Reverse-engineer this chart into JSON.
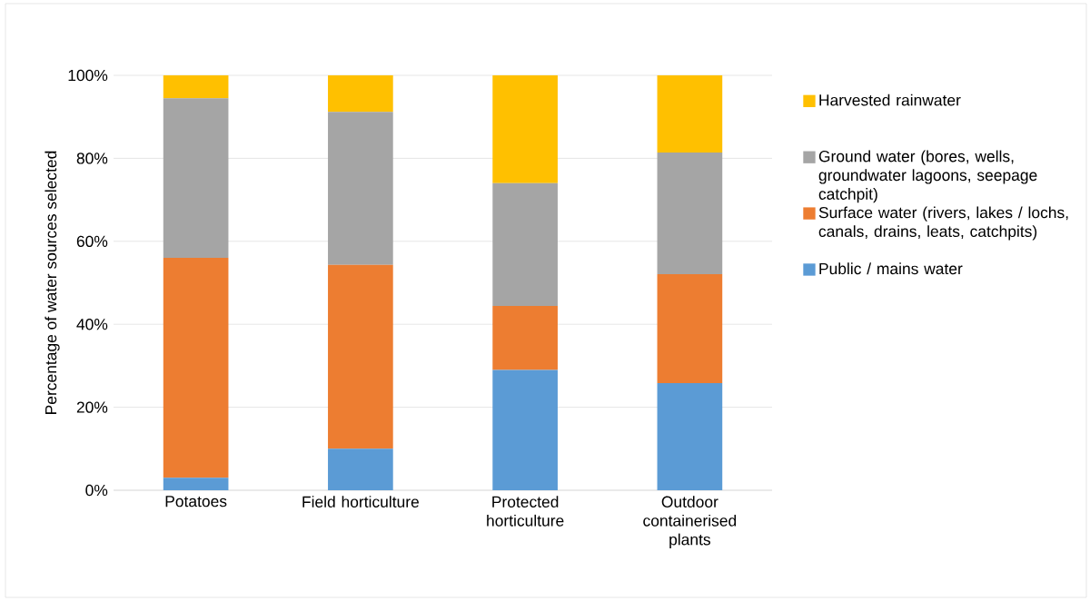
{
  "chart_data": {
    "type": "bar",
    "stacked": true,
    "ylabel": "Percentage of water sources selected",
    "categories": [
      "Potatoes",
      "Field horticulture",
      "Protected horticulture",
      "Outdoor containerised plants"
    ],
    "series": [
      {
        "name": "Public / mains water",
        "color": "#5b9bd5",
        "values": [
          3,
          10,
          29,
          25.8
        ]
      },
      {
        "name": "Surface water (rivers, lakes / lochs, canals, drains, leats, catchpits)",
        "color": "#ed7d31",
        "values": [
          53,
          44.3,
          15.4,
          26.3
        ]
      },
      {
        "name": "Ground water (bores, wells, groundwater lagoons, seepage catchpit)",
        "color": "#a5a5a5",
        "values": [
          38.5,
          36.9,
          29.6,
          29.3
        ]
      },
      {
        "name": "Harvested rainwater",
        "color": "#ffc000",
        "values": [
          5.5,
          8.8,
          26,
          18.6
        ]
      }
    ],
    "ylim": [
      0,
      100
    ],
    "yticks": [
      {
        "value": 0,
        "label": "0%"
      },
      {
        "value": 20,
        "label": "20%"
      },
      {
        "value": 40,
        "label": "40%"
      },
      {
        "value": 60,
        "label": "60%"
      },
      {
        "value": 80,
        "label": "80%"
      },
      {
        "value": 100,
        "label": "100%"
      }
    ],
    "grid": "y",
    "legend": "right"
  }
}
